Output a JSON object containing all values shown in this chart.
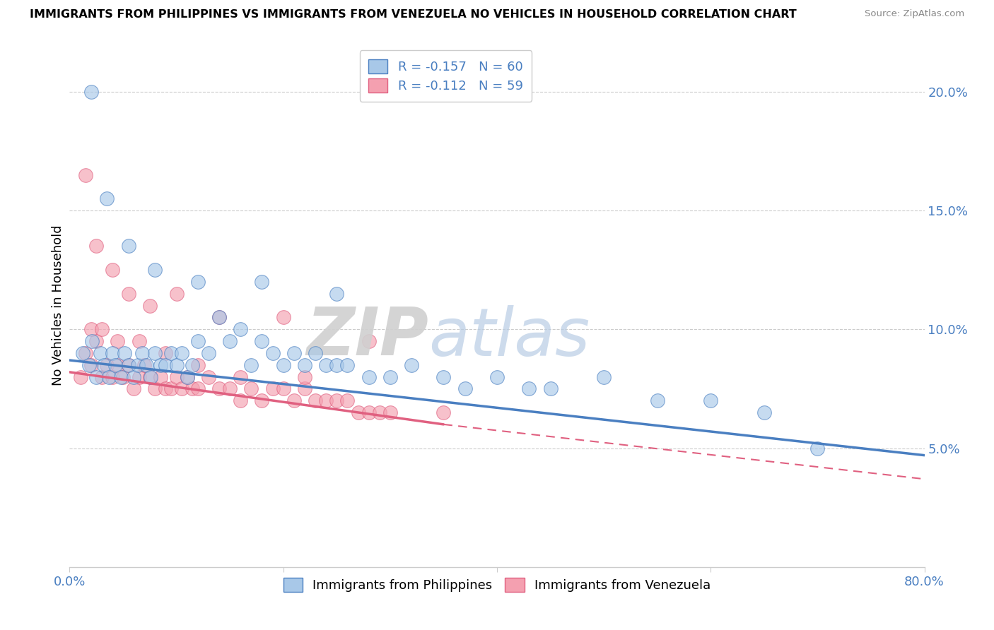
{
  "title": "IMMIGRANTS FROM PHILIPPINES VS IMMIGRANTS FROM VENEZUELA NO VEHICLES IN HOUSEHOLD CORRELATION CHART",
  "source": "Source: ZipAtlas.com",
  "ylabel": "No Vehicles in Household",
  "xlim": [
    0.0,
    80.0
  ],
  "ylim": [
    0.0,
    22.0
  ],
  "yticks": [
    5.0,
    10.0,
    15.0,
    20.0
  ],
  "ytick_labels": [
    "5.0%",
    "10.0%",
    "15.0%",
    "20.0%"
  ],
  "legend1_label": "R = -0.157   N = 60",
  "legend2_label": "R = -0.112   N = 59",
  "philippines_color": "#a8c8e8",
  "venezuela_color": "#f4a0b0",
  "philippines_line_color": "#4a7fc1",
  "venezuela_line_color": "#e06080",
  "philippines_x": [
    1.2,
    1.8,
    2.1,
    2.5,
    2.9,
    3.2,
    3.7,
    4.0,
    4.3,
    4.8,
    5.1,
    5.5,
    6.0,
    6.4,
    6.8,
    7.2,
    7.6,
    8.0,
    8.5,
    9.0,
    9.5,
    10.0,
    10.5,
    11.0,
    11.5,
    12.0,
    13.0,
    14.0,
    15.0,
    16.0,
    17.0,
    18.0,
    19.0,
    20.0,
    21.0,
    22.0,
    23.0,
    24.0,
    25.0,
    26.0,
    28.0,
    30.0,
    32.0,
    35.0,
    37.0,
    40.0,
    43.0,
    45.0,
    50.0,
    55.0,
    60.0,
    65.0,
    70.0,
    2.0,
    3.5,
    5.5,
    8.0,
    12.0,
    18.0,
    25.0
  ],
  "philippines_y": [
    9.0,
    8.5,
    9.5,
    8.0,
    9.0,
    8.5,
    8.0,
    9.0,
    8.5,
    8.0,
    9.0,
    8.5,
    8.0,
    8.5,
    9.0,
    8.5,
    8.0,
    9.0,
    8.5,
    8.5,
    9.0,
    8.5,
    9.0,
    8.0,
    8.5,
    9.5,
    9.0,
    10.5,
    9.5,
    10.0,
    8.5,
    9.5,
    9.0,
    8.5,
    9.0,
    8.5,
    9.0,
    8.5,
    8.5,
    8.5,
    8.0,
    8.0,
    8.5,
    8.0,
    7.5,
    8.0,
    7.5,
    7.5,
    8.0,
    7.0,
    7.0,
    6.5,
    5.0,
    20.0,
    15.5,
    13.5,
    12.5,
    12.0,
    12.0,
    11.5
  ],
  "venezuela_x": [
    1.0,
    1.5,
    2.0,
    2.5,
    3.0,
    3.5,
    4.0,
    4.5,
    5.0,
    5.5,
    6.0,
    6.5,
    7.0,
    7.5,
    8.0,
    8.5,
    9.0,
    9.5,
    10.0,
    10.5,
    11.0,
    11.5,
    12.0,
    13.0,
    14.0,
    15.0,
    16.0,
    17.0,
    18.0,
    19.0,
    20.0,
    21.0,
    22.0,
    23.0,
    24.0,
    25.0,
    26.0,
    27.0,
    28.0,
    29.0,
    30.0,
    1.5,
    2.5,
    4.0,
    5.5,
    7.5,
    10.0,
    14.0,
    20.0,
    28.0,
    2.0,
    3.0,
    4.5,
    6.5,
    9.0,
    12.0,
    16.0,
    22.0,
    35.0
  ],
  "venezuela_y": [
    8.0,
    9.0,
    8.5,
    9.5,
    8.0,
    8.5,
    8.0,
    8.5,
    8.0,
    8.5,
    7.5,
    8.0,
    8.5,
    8.0,
    7.5,
    8.0,
    7.5,
    7.5,
    8.0,
    7.5,
    8.0,
    7.5,
    7.5,
    8.0,
    7.5,
    7.5,
    7.0,
    7.5,
    7.0,
    7.5,
    7.5,
    7.0,
    7.5,
    7.0,
    7.0,
    7.0,
    7.0,
    6.5,
    6.5,
    6.5,
    6.5,
    16.5,
    13.5,
    12.5,
    11.5,
    11.0,
    11.5,
    10.5,
    10.5,
    9.5,
    10.0,
    10.0,
    9.5,
    9.5,
    9.0,
    8.5,
    8.0,
    8.0,
    6.5
  ],
  "phil_line_x0": 0.0,
  "phil_line_y0": 8.7,
  "phil_line_x1": 80.0,
  "phil_line_y1": 4.7,
  "vene_solid_x0": 0.0,
  "vene_solid_y0": 8.2,
  "vene_solid_x1": 35.0,
  "vene_solid_y1": 6.0,
  "vene_dash_x0": 35.0,
  "vene_dash_y0": 6.0,
  "vene_dash_x1": 80.0,
  "vene_dash_y1": 3.7
}
